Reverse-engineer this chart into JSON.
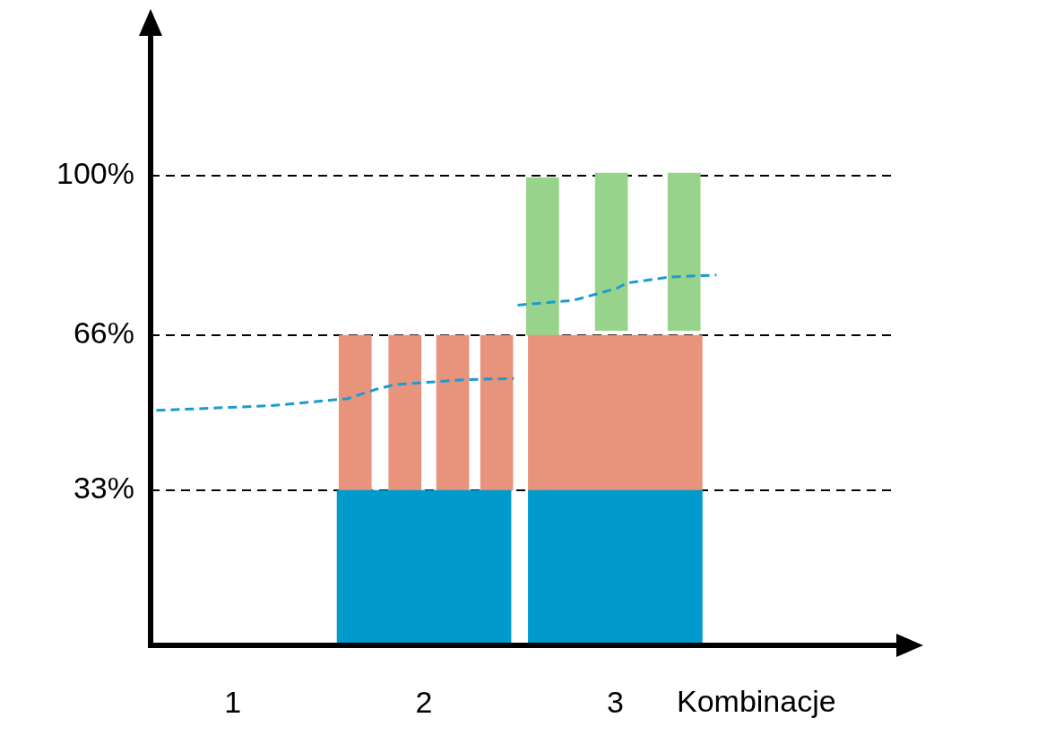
{
  "chart_data": {
    "type": "bar",
    "xlabel": "Kombinacje",
    "xlim": [
      0.57,
      4.47
    ],
    "xticks": [
      1,
      2,
      3
    ],
    "ylim": [
      0,
      130
    ],
    "yticks": [
      {
        "value": 33,
        "label": "33%"
      },
      {
        "value": 66,
        "label": "66%"
      },
      {
        "value": 100,
        "label": "100%"
      }
    ],
    "grid": "y",
    "legend": false,
    "series": [
      {
        "type": "bar",
        "color": "#009acd",
        "x": [
          2,
          3
        ],
        "base": [
          0,
          0
        ],
        "values": [
          33,
          33
        ]
      },
      {
        "type": "bar",
        "color": "#e8937b",
        "x": [
          1.64,
          1.9,
          2.15,
          2.38
        ],
        "base": [
          33,
          33,
          33,
          33
        ],
        "values": [
          33,
          33,
          33,
          33
        ]
      },
      {
        "type": "bar",
        "color": "#e8937b",
        "x": [
          3
        ],
        "base": [
          33
        ],
        "values": [
          33
        ]
      },
      {
        "type": "bar",
        "color": "#98d38b",
        "x": [
          2.62,
          2.98,
          3.36
        ],
        "base": [
          66,
          67,
          67
        ],
        "values": [
          33.5,
          33.5,
          33.5
        ]
      },
      {
        "type": "line",
        "color": "#1a9cd0",
        "line_style": "dashed",
        "marker": "none",
        "x": [
          0.6,
          1.2,
          1.6,
          1.75,
          1.85,
          2.2,
          2.47
        ],
        "values": [
          50,
          51,
          52.5,
          54.5,
          55.5,
          56.5,
          56.8
        ]
      },
      {
        "type": "line",
        "color": "#1a9cd0",
        "line_style": "dashed",
        "marker": "none",
        "x": [
          2.49,
          2.78,
          3.01,
          3.06,
          3.29,
          3.53
        ],
        "values": [
          72.4,
          73.4,
          76,
          77.1,
          78.4,
          78.8
        ]
      }
    ]
  }
}
